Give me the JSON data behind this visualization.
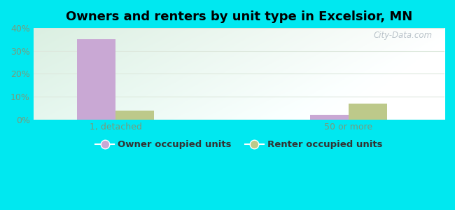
{
  "title": "Owners and renters by unit type in Excelsior, MN",
  "categories": [
    "1, detached",
    "50 or more"
  ],
  "owner_values": [
    35,
    2
  ],
  "renter_values": [
    4,
    7
  ],
  "owner_color": "#c9a8d4",
  "renter_color": "#bdc98a",
  "ylim": [
    0,
    40
  ],
  "yticks": [
    0,
    10,
    20,
    30,
    40
  ],
  "ytick_labels": [
    "0%",
    "10%",
    "20%",
    "30%",
    "40%"
  ],
  "bar_width": 0.28,
  "outer_bg": "#00e8f0",
  "plot_bg_left": "#d6eedd",
  "plot_bg_right": "#edf7ee",
  "watermark": "City-Data.com",
  "legend_owner": "Owner occupied units",
  "legend_renter": "Renter occupied units",
  "grid_color": "#e8f0e8",
  "tick_color": "#7a9a7a",
  "title_fontsize": 13
}
